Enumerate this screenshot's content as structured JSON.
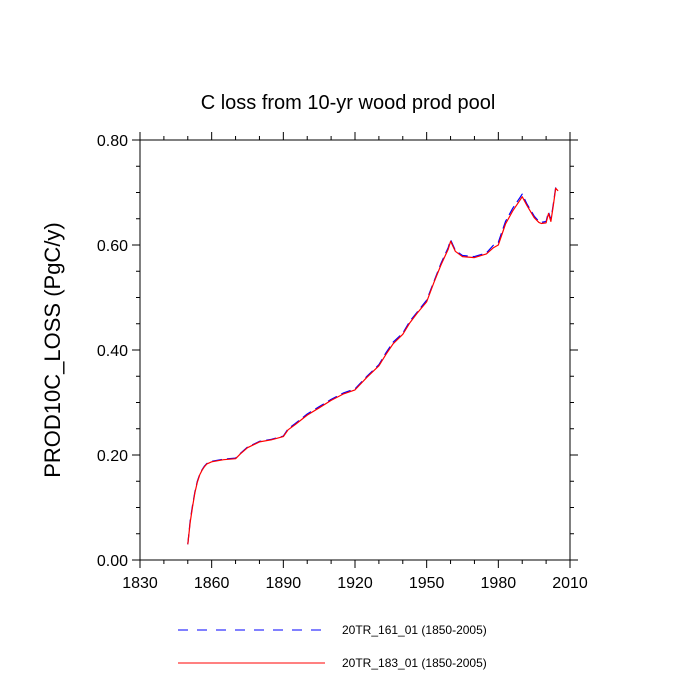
{
  "chart_data": {
    "type": "line",
    "title": "C loss from 10-yr wood prod pool",
    "xlabel": "",
    "ylabel": "PROD10C_LOSS  (PgC/y)",
    "xlim": [
      1830,
      2010
    ],
    "ylim": [
      0.0,
      0.8
    ],
    "xticks": [
      1830,
      1860,
      1890,
      1920,
      1950,
      1980,
      2010
    ],
    "xtick_labels": [
      "1830",
      "1860",
      "1890",
      "1920",
      "1950",
      "1980",
      "2010"
    ],
    "yticks": [
      0.0,
      0.2,
      0.4,
      0.6,
      0.8
    ],
    "ytick_labels": [
      "0.00",
      "0.20",
      "0.40",
      "0.60",
      "0.80"
    ],
    "grid": false,
    "legend_position": "bottom",
    "series": [
      {
        "name": "20TR_161_01 (1850-2005)",
        "color": "#0000ff",
        "dash": "dashed",
        "x": [
          1850,
          1851,
          1852,
          1853,
          1854,
          1855,
          1856,
          1857,
          1858,
          1860,
          1865,
          1870,
          1872,
          1875,
          1880,
          1885,
          1890,
          1892,
          1895,
          1900,
          1905,
          1910,
          1915,
          1920,
          1925,
          1930,
          1933,
          1936,
          1940,
          1943,
          1946,
          1950,
          1953,
          1956,
          1959,
          1960,
          1962,
          1965,
          1970,
          1975,
          1978,
          1980,
          1983,
          1986,
          1989,
          1990,
          1992,
          1995,
          1997,
          1998,
          2000,
          2001,
          2002,
          2003,
          2004,
          2005
        ],
        "values": [
          0.03,
          0.075,
          0.105,
          0.13,
          0.15,
          0.163,
          0.172,
          0.179,
          0.184,
          0.188,
          0.192,
          0.194,
          0.203,
          0.215,
          0.226,
          0.23,
          0.236,
          0.25,
          0.26,
          0.278,
          0.292,
          0.306,
          0.318,
          0.326,
          0.35,
          0.372,
          0.395,
          0.415,
          0.432,
          0.455,
          0.472,
          0.495,
          0.53,
          0.565,
          0.595,
          0.61,
          0.59,
          0.58,
          0.578,
          0.585,
          0.6,
          0.605,
          0.645,
          0.67,
          0.69,
          0.697,
          0.678,
          0.655,
          0.645,
          0.643,
          0.645,
          0.663,
          0.648,
          0.678,
          0.71,
          0.705
        ]
      },
      {
        "name": "20TR_183_01 (1850-2005)",
        "color": "#ff0000",
        "dash": "solid",
        "x": [
          1850,
          1851,
          1852,
          1853,
          1854,
          1855,
          1856,
          1857,
          1858,
          1860,
          1865,
          1870,
          1872,
          1875,
          1880,
          1885,
          1890,
          1892,
          1895,
          1900,
          1905,
          1910,
          1915,
          1920,
          1925,
          1930,
          1933,
          1936,
          1940,
          1943,
          1946,
          1950,
          1953,
          1956,
          1959,
          1960,
          1962,
          1965,
          1970,
          1975,
          1978,
          1980,
          1983,
          1986,
          1989,
          1990,
          1992,
          1995,
          1997,
          1998,
          2000,
          2001,
          2002,
          2003,
          2004,
          2005
        ],
        "values": [
          0.03,
          0.072,
          0.102,
          0.128,
          0.148,
          0.162,
          0.171,
          0.178,
          0.183,
          0.187,
          0.191,
          0.193,
          0.202,
          0.214,
          0.225,
          0.229,
          0.235,
          0.248,
          0.258,
          0.276,
          0.29,
          0.304,
          0.316,
          0.324,
          0.348,
          0.37,
          0.392,
          0.412,
          0.43,
          0.452,
          0.47,
          0.492,
          0.528,
          0.562,
          0.592,
          0.607,
          0.588,
          0.578,
          0.576,
          0.583,
          0.595,
          0.6,
          0.64,
          0.665,
          0.685,
          0.692,
          0.675,
          0.652,
          0.643,
          0.641,
          0.642,
          0.66,
          0.645,
          0.675,
          0.708,
          0.703
        ]
      }
    ]
  }
}
